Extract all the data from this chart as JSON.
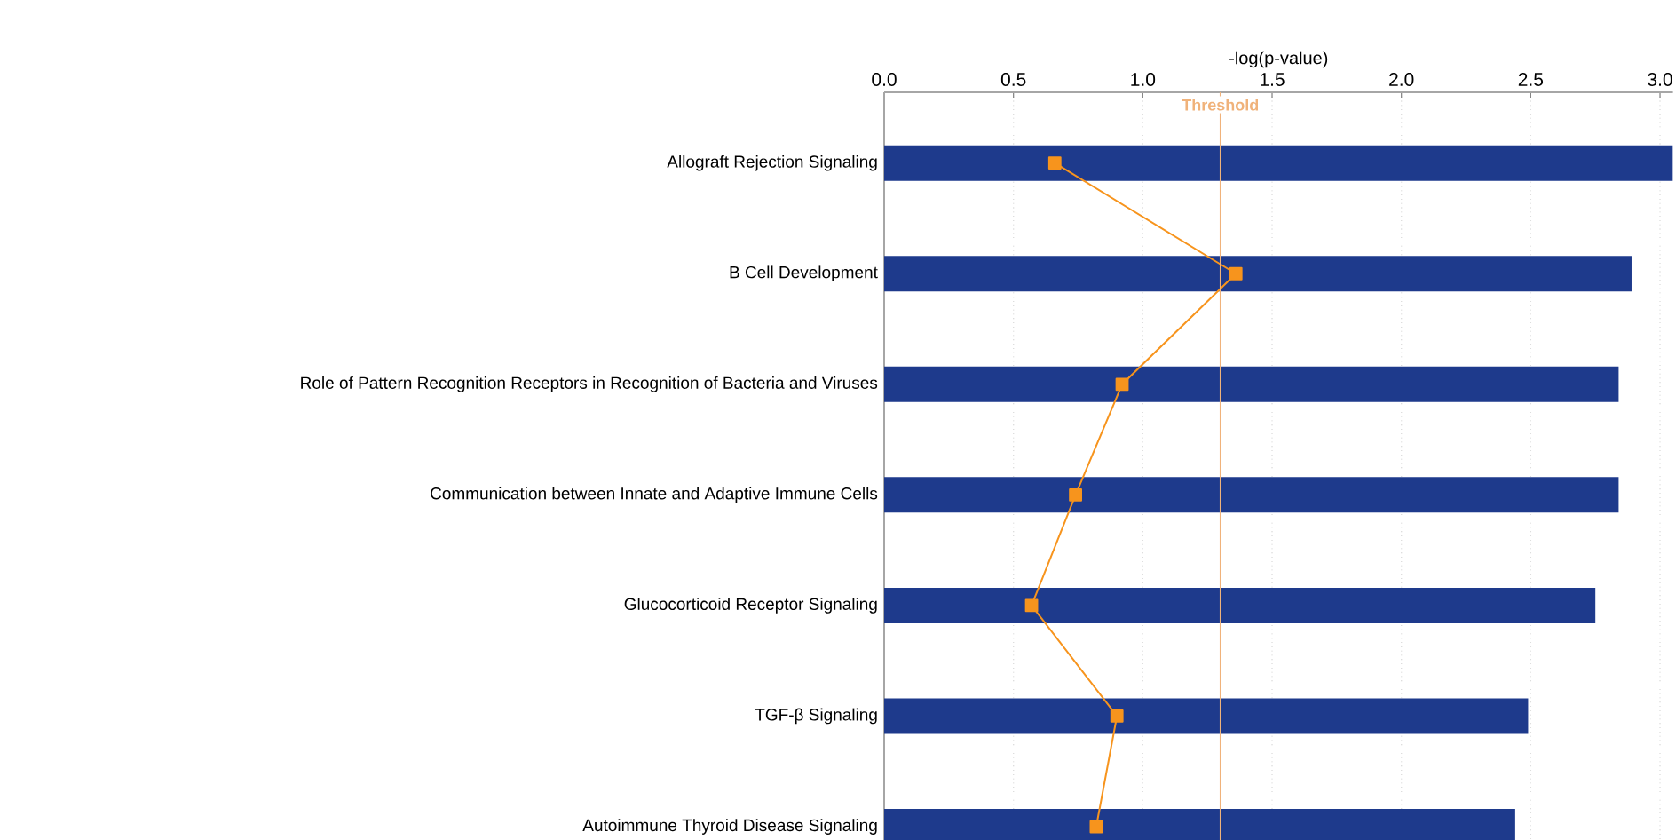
{
  "chart_data": {
    "type": "bar",
    "orientation": "horizontal",
    "xlabel": "-log(p-value)",
    "categories": [
      "Allograft Rejection Signaling",
      "B Cell Development",
      "Role of Pattern Recognition Receptors in Recognition of Bacteria and Viruses",
      "Communication between Innate and Adaptive Immune Cells",
      "Glucocorticoid Receptor Signaling",
      "TGF-β Signaling",
      "Autoimmune Thyroid Disease Signaling"
    ],
    "series": [
      {
        "color": "#1e3a8c",
        "values": [
          3.05,
          2.89,
          2.84,
          2.84,
          2.75,
          2.49,
          2.44
        ]
      },
      {
        "type": "line",
        "color": "#f7941d",
        "marker": "square",
        "values": [
          0.66,
          1.36,
          0.92,
          0.74,
          0.57,
          0.9,
          0.82
        ]
      }
    ],
    "xlim": [
      0,
      3.05
    ],
    "xticks": [
      {
        "value": 0,
        "label": "0.0"
      },
      0.5,
      {
        "value": 1,
        "label": "1.0"
      },
      1.5,
      {
        "value": 2,
        "label": "2.0"
      },
      2.5,
      {
        "value": 3,
        "label": "3.0"
      }
    ],
    "grid": "x",
    "ref_lines": [
      {
        "axis": "x",
        "value": 1.3,
        "label": "Threshold",
        "color": "#f0b27a"
      }
    ]
  }
}
